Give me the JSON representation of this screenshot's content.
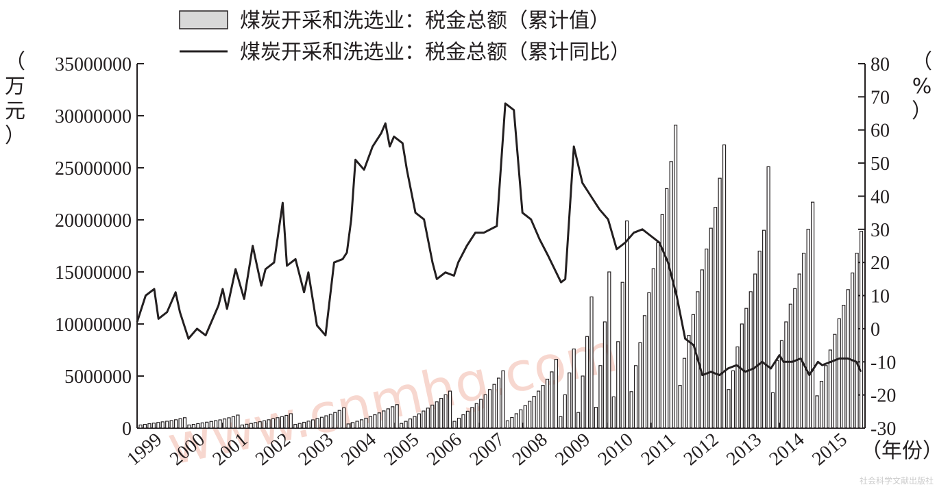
{
  "legend": {
    "bar_label": "煤炭开采和洗选业：税金总额（累计值）",
    "line_label": "煤炭开采和洗选业：税金总额（累计同比）"
  },
  "axes": {
    "left_unit": "（万元）",
    "right_unit": "（%）",
    "x_unit": "（年份）"
  },
  "watermark": "www.cnmhg.com",
  "credit": "社会科学文献出版社",
  "colors": {
    "bar_fill": "#ffffff",
    "bar_stroke": "#231f20",
    "line": "#231f20",
    "watermark": "#f2b8a8"
  },
  "chart_data": {
    "type": "bar+line",
    "x_labels": [
      "1999",
      "2000",
      "2001",
      "2002",
      "2003",
      "2004",
      "2005",
      "2006",
      "2007",
      "2008",
      "2009",
      "2010",
      "2011",
      "2012",
      "2013",
      "2014",
      "2015"
    ],
    "y_left_ticks": [
      "0",
      "5000000",
      "10000000",
      "15000000",
      "20000000",
      "25000000",
      "30000000",
      "35000000"
    ],
    "y_left_range": [
      0,
      35000000
    ],
    "y_right_ticks": [
      "-30",
      "-20",
      "-10",
      "0",
      "10",
      "20",
      "30",
      "40",
      "50",
      "60",
      "70",
      "80"
    ],
    "y_right_range": [
      -30,
      80
    ],
    "series": [
      {
        "name": "煤炭开采和洗选业：税金总额（累计值）",
        "kind": "bar",
        "axis": "left",
        "values": [
          300000,
          360000,
          420000,
          480000,
          540000,
          600000,
          660000,
          720000,
          800000,
          900000,
          1000000,
          300000,
          360000,
          430000,
          500000,
          570000,
          640000,
          710000,
          790000,
          880000,
          990000,
          1100000,
          1250000,
          300000,
          370000,
          450000,
          530000,
          610000,
          700000,
          800000,
          900000,
          1000000,
          1100000,
          1220000,
          1380000,
          350000,
          450000,
          560000,
          670000,
          790000,
          910000,
          1040000,
          1180000,
          1330000,
          1500000,
          1700000,
          1950000,
          400000,
          530000,
          660000,
          800000,
          950000,
          1110000,
          1280000,
          1460000,
          1650000,
          1850000,
          2050000,
          2250000,
          450000,
          650000,
          880000,
          1120000,
          1370000,
          1640000,
          1920000,
          2210000,
          2520000,
          2850000,
          3200000,
          3550000,
          650000,
          950000,
          1280000,
          1620000,
          1980000,
          2360000,
          2760000,
          3200000,
          3700000,
          4200000,
          4800000,
          5500000,
          700000,
          1020000,
          1380000,
          1760000,
          2160000,
          2580000,
          3050000,
          3550000,
          4100000,
          4700000,
          5400000,
          6600000,
          1100000,
          3200000,
          5300000,
          7600000,
          1500000,
          5000000,
          8800000,
          12600000,
          2000000,
          6000000,
          10200000,
          15000000,
          3000000,
          8300000,
          14000000,
          19900000,
          3500000,
          6000000,
          8200000,
          10800000,
          13000000,
          15300000,
          17800000,
          20500000,
          23000000,
          25600000,
          29100000,
          4100000,
          6700000,
          8900000,
          10900000,
          13100000,
          15200000,
          17200000,
          19200000,
          21200000,
          24000000,
          27200000,
          3700000,
          5500000,
          7800000,
          10000000,
          11500000,
          13100000,
          14800000,
          17000000,
          19000000,
          25100000,
          3400000,
          6500000,
          8400000,
          10200000,
          11900000,
          13400000,
          14800000,
          16800000,
          19100000,
          21700000,
          3100000,
          4500000,
          6000000,
          7500000,
          9000000,
          10500000,
          11800000,
          13300000,
          14900000,
          16800000,
          18900000
        ]
      },
      {
        "name": "煤炭开采和洗选业：税金总额（累计同比）",
        "kind": "line",
        "axis": "right",
        "x_year": [
          1999,
          1999.2,
          1999.4,
          1999.5,
          1999.7,
          1999.9,
          2000.0,
          2000.2,
          2000.4,
          2000.6,
          2000.9,
          2001.0,
          2001.1,
          2001.3,
          2001.5,
          2001.7,
          2001.9,
          2002.0,
          2002.2,
          2002.4,
          2002.5,
          2002.7,
          2002.9,
          2003.0,
          2003.2,
          2003.4,
          2003.6,
          2003.8,
          2003.9,
          2004.0,
          2004.1,
          2004.3,
          2004.5,
          2004.7,
          2004.8,
          2004.9,
          2005.0,
          2005.2,
          2005.3,
          2005.5,
          2005.7,
          2005.9,
          2006.0,
          2006.2,
          2006.4,
          2006.5,
          2006.7,
          2006.9,
          2007.1,
          2007.4,
          2007.6,
          2007.8,
          2008.0,
          2008.2,
          2008.4,
          2008.6,
          2008.9,
          2009.0,
          2009.2,
          2009.4,
          2009.6,
          2009.8,
          2010.0,
          2010.2,
          2010.4,
          2010.6,
          2010.8,
          2011.0,
          2011.2,
          2011.4,
          2011.6,
          2011.8,
          2012.0,
          2012.2,
          2012.4,
          2012.6,
          2012.8,
          2013.0,
          2013.2,
          2013.4,
          2013.6,
          2013.8,
          2014.0,
          2014.1,
          2014.3,
          2014.5,
          2014.7,
          2014.9,
          2015.0,
          2015.2,
          2015.4,
          2015.6,
          2015.8,
          2015.9
        ],
        "values": [
          2,
          10,
          12,
          3,
          5,
          11,
          5,
          -3,
          0,
          -2,
          7,
          12,
          6,
          18,
          9,
          25,
          13,
          18,
          20,
          38,
          19,
          21,
          11,
          17,
          1,
          -2,
          20,
          21,
          23,
          33,
          51,
          48,
          55,
          59,
          62,
          55,
          58,
          56,
          48,
          35,
          33,
          20,
          15,
          17,
          16,
          20,
          25,
          29,
          29,
          31,
          68,
          66,
          35,
          33,
          27,
          22,
          14,
          15,
          55,
          44,
          40,
          36,
          33,
          24,
          26,
          29,
          30,
          28,
          26,
          20,
          10,
          -3,
          -5,
          -14,
          -13,
          -14,
          -12,
          -11,
          -13,
          -12,
          -10,
          -12,
          -8,
          -10,
          -10,
          -9,
          -14,
          -10,
          -11,
          -10,
          -9,
          -9,
          -10,
          -13
        ]
      }
    ]
  }
}
